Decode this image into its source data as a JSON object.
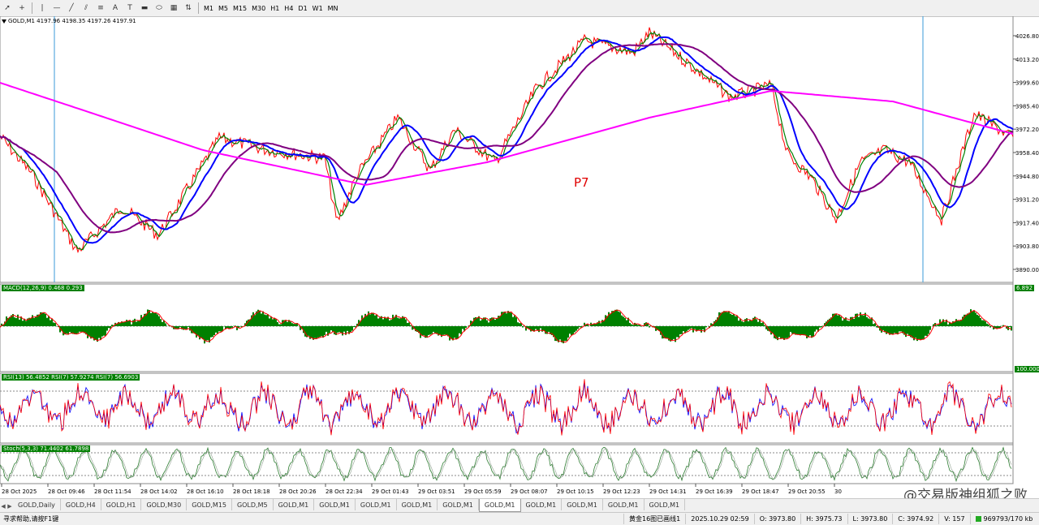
{
  "toolbar": {
    "icons": [
      "cursor-icon",
      "crosshair-icon",
      "vertical-line-icon",
      "horizontal-line-icon",
      "trendline-icon",
      "channel-icon",
      "fibonacci-icon",
      "text-icon",
      "label-icon",
      "rectangle-icon",
      "ellipse-icon",
      "grid-icon",
      "arrows-icon"
    ],
    "timeframes": [
      "M1",
      "M5",
      "M15",
      "M30",
      "H1",
      "H4",
      "D1",
      "W1",
      "MN"
    ]
  },
  "main_chart": {
    "info": "GOLD,M1  4197.96 4198.35 4197.26 4197.91",
    "annotation": "P7",
    "price_labels": [
      "4026.80",
      "4013.20",
      "3999.60",
      "3985.40",
      "3972.20",
      "3958.40",
      "3944.80",
      "3931.20",
      "3917.40",
      "3903.80",
      "3890.00"
    ],
    "colors": {
      "ma_fast": "#008000",
      "ma_mid": "#0000ff",
      "ma_slow": "#800080",
      "ma_long": "#ff00ff",
      "price": "#ff0000"
    }
  },
  "macd_panel": {
    "label": "MACD(12,26,9) 0.468 0.293",
    "right_top": "6.892"
  },
  "rsi_panel": {
    "label": "RSI(13) 56.4852  RSI(7) 57.9274  RSI(7) 56.6903",
    "right_top": "100.000"
  },
  "stoch_panel": {
    "label": "Stoch(5,3,3) 71.4402 61.7898"
  },
  "time_labels": [
    "28 Oct 2025",
    "28 Oct 09:46",
    "28 Oct 11:54",
    "28 Oct 14:02",
    "28 Oct 16:10",
    "28 Oct 18:18",
    "28 Oct 20:26",
    "28 Oct 22:34",
    "29 Oct 01:43",
    "29 Oct 03:51",
    "29 Oct 05:59",
    "29 Oct 08:07",
    "29 Oct 10:15",
    "29 Oct 12:23",
    "29 Oct 14:31",
    "29 Oct 16:39",
    "29 Oct 18:47",
    "29 Oct 20:55",
    "30"
  ],
  "tabs": [
    "GOLD,Daily",
    "GOLD,H4",
    "GOLD,H1",
    "GOLD,M30",
    "GOLD,M15",
    "GOLD,M5",
    "GOLD,M1",
    "GOLD,M1",
    "GOLD,M1",
    "GOLD,M1",
    "GOLD,M1",
    "GOLD,M1",
    "GOLD,M1",
    "GOLD,M1",
    "GOLD,M1",
    "GOLD,M1"
  ],
  "active_tab_index": 11,
  "status": {
    "help": "寻求帮助,请按F1键",
    "profile": "黄金16图已画线1",
    "datetime": "2025.10.29 02:59",
    "open": "O: 3973.80",
    "high": "H: 3975.73",
    "low": "L: 3973.80",
    "close": "C: 3974.92",
    "volume": "V: 157",
    "traffic": "969793/170 kb"
  },
  "watermark": "@交易版神组狐之败"
}
